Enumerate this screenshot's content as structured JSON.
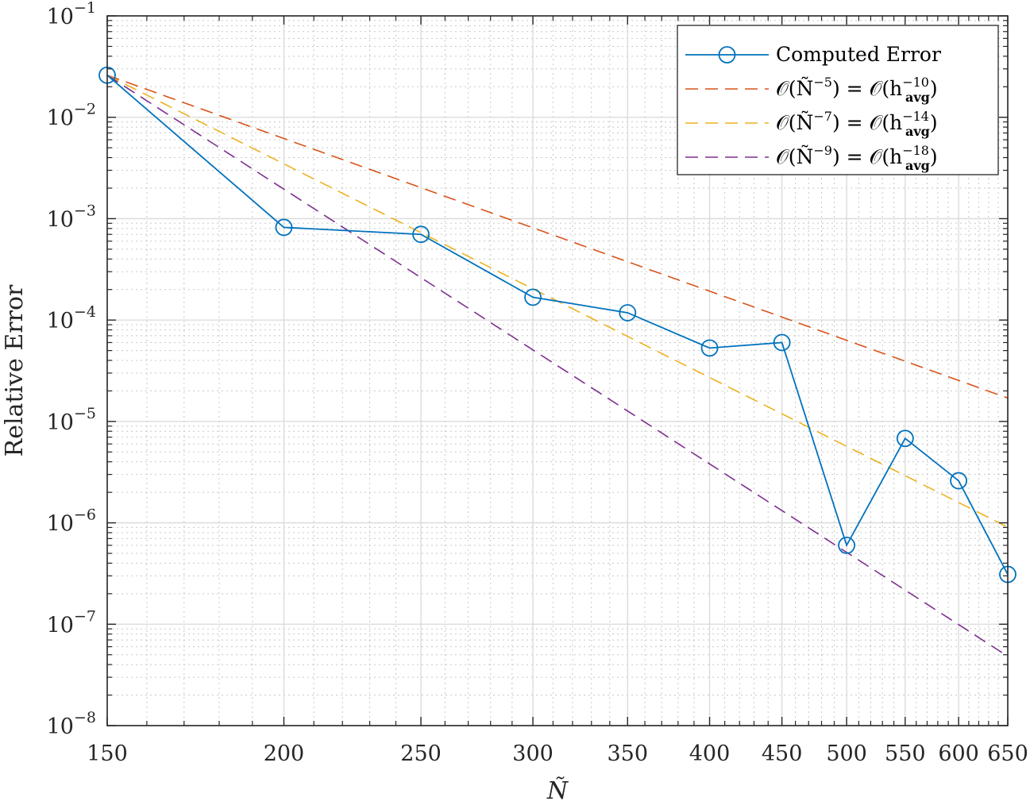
{
  "chart_data": {
    "type": "line",
    "xscale": "log",
    "yscale": "log",
    "xlabel": "Ñ",
    "ylabel": "Relative Error",
    "xlim": [
      150,
      650
    ],
    "ylim": [
      1e-08,
      0.1
    ],
    "grid": true,
    "minor_grid": true,
    "xticks": [
      150,
      200,
      250,
      300,
      350,
      400,
      450,
      500,
      550,
      600,
      650
    ],
    "xtick_labels": [
      "150",
      "200",
      "250",
      "300",
      "350",
      "400",
      "450",
      "500",
      "550",
      "600",
      "650"
    ],
    "yticks": [
      {
        "value": 1e-08,
        "base": "10",
        "exp": "−8"
      },
      {
        "value": 1e-07,
        "base": "10",
        "exp": "−7"
      },
      {
        "value": 1e-06,
        "base": "10",
        "exp": "−6"
      },
      {
        "value": 1e-05,
        "base": "10",
        "exp": "−5"
      },
      {
        "value": 0.0001,
        "base": "10",
        "exp": "−4"
      },
      {
        "value": 0.001,
        "base": "10",
        "exp": "−3"
      },
      {
        "value": 0.01,
        "base": "10",
        "exp": "−2"
      },
      {
        "value": 0.1,
        "base": "10",
        "exp": "−1"
      }
    ],
    "legend_position": "top-right",
    "series": [
      {
        "name": "Computed Error",
        "color": "#0072BD",
        "style": "solid",
        "marker": "circle",
        "x": [
          150,
          200,
          250,
          300,
          350,
          400,
          450,
          500,
          550,
          600,
          650
        ],
        "y": [
          0.026,
          0.00082,
          0.0007,
          0.000168,
          0.000118,
          5.3e-05,
          6e-05,
          6e-07,
          6.8e-06,
          2.6e-06,
          3.1e-07
        ]
      },
      {
        "name": "O(Ñ^−5) = O(h_avg^−10)",
        "legend": {
          "a": "𝒪(Ñ",
          "aexp": "−5",
          "b": ") = 𝒪(h",
          "bsub": "avg",
          "bexp": "−10",
          "c": ")"
        },
        "color": "#D95319",
        "style": "dashed",
        "order": 5,
        "x0": 150,
        "y0": 0.026
      },
      {
        "name": "O(Ñ^−7) = O(h_avg^−14)",
        "legend": {
          "a": "𝒪(Ñ",
          "aexp": "−7",
          "b": ") = 𝒪(h",
          "bsub": "avg",
          "bexp": "−14",
          "c": ")"
        },
        "color": "#EDB120",
        "style": "dashed",
        "order": 7,
        "x0": 150,
        "y0": 0.026
      },
      {
        "name": "O(Ñ^−9) = O(h_avg^−18)",
        "legend": {
          "a": "𝒪(Ñ",
          "aexp": "−9",
          "b": ") = 𝒪(h",
          "bsub": "avg",
          "bexp": "−18",
          "c": ")"
        },
        "color": "#7E2F8E",
        "style": "dashed",
        "order": 9,
        "x0": 150,
        "y0": 0.026
      }
    ]
  }
}
